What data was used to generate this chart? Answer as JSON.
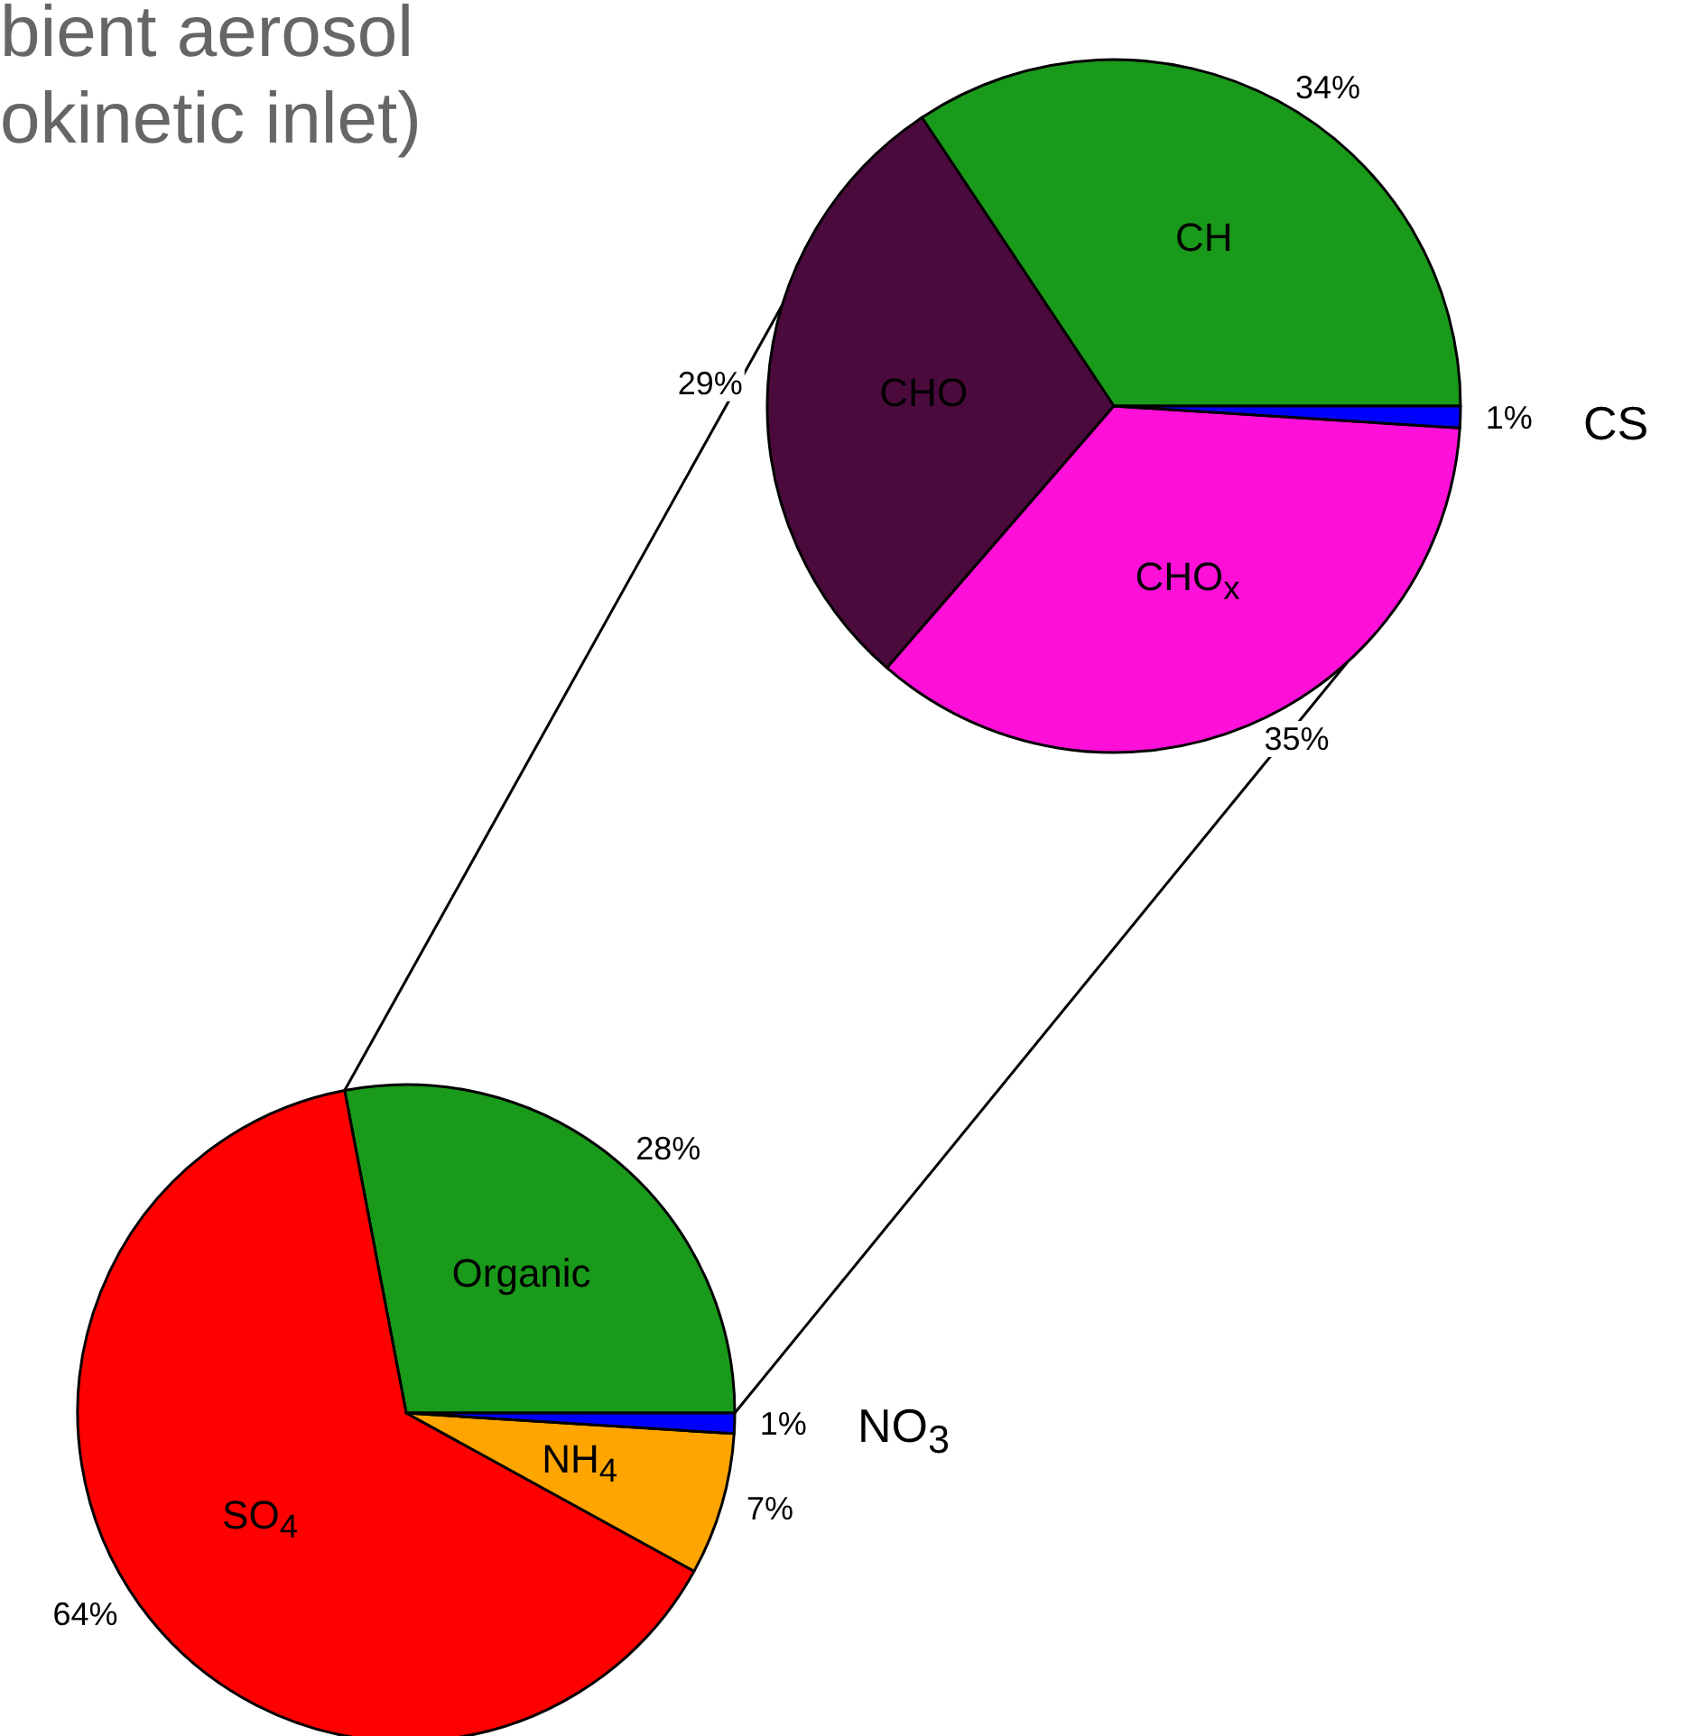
{
  "chart_data": [
    {
      "type": "pie",
      "title": "bient aerosol\nokinetic inlet)",
      "categories": [
        "CH",
        "CHO",
        "CHO$_{x}$",
        "CS"
      ],
      "values": [
        34,
        29,
        35,
        1
      ],
      "colors": [
        "#1a9a1a",
        "#4b0a3c",
        "#ff10d8",
        "#0000ff"
      ],
      "value_labels": [
        "34%",
        "29%",
        "35%",
        "1%"
      ]
    },
    {
      "type": "pie",
      "categories": [
        "Organic",
        "SO$_{4}$",
        "NH$_{4}$",
        "NO$_{3}$"
      ],
      "values": [
        28,
        64,
        7,
        1
      ],
      "colors": [
        "#1a9a1a",
        "#ff0000",
        "#ffa500",
        "#0000ff"
      ],
      "value_labels": [
        "28%",
        "64%",
        "7%",
        "1%"
      ]
    }
  ]
}
